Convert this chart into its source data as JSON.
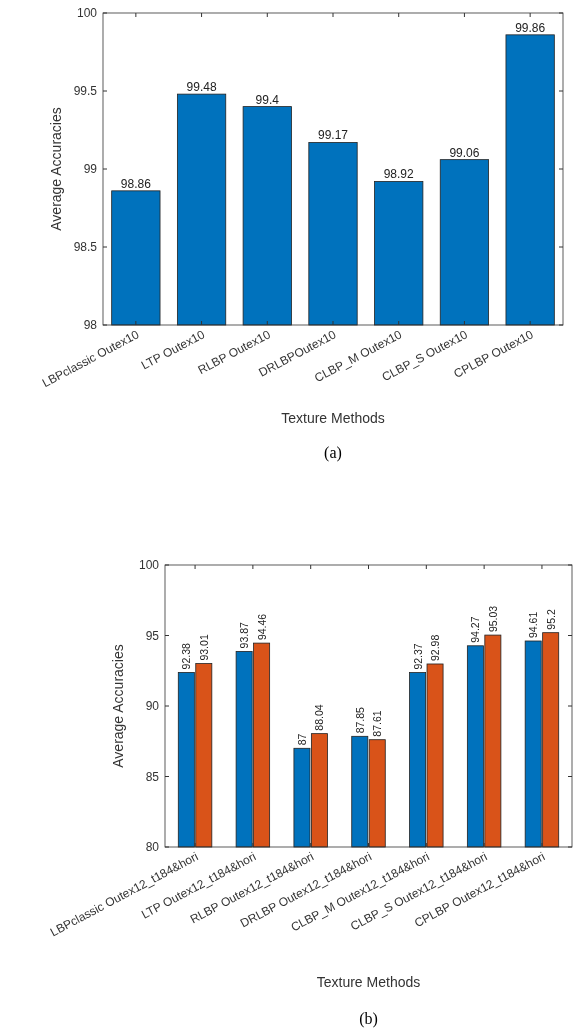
{
  "chart_data": [
    {
      "type": "bar",
      "xlabel": "Texture Methods",
      "ylabel": "Average Accuracies",
      "annotations": [
        "(a)"
      ],
      "categories": [
        "LBPclassic Outex10",
        "LTP Outex10",
        "RLBP Outex10",
        "DRLBPOutex10",
        "CLBP_M Outex10",
        "CLBP_S Outex10",
        "CPLBP Outex10"
      ],
      "values": [
        98.86,
        99.48,
        99.4,
        99.17,
        98.92,
        99.06,
        99.86
      ],
      "color": "#0072bd",
      "ylim": [
        98,
        100
      ],
      "yticks": [
        98,
        98.5,
        99,
        99.5,
        100
      ],
      "data_labels": true
    },
    {
      "type": "bar",
      "xlabel": "Texture Methods",
      "ylabel": "Average Accuracies",
      "annotations": [
        "(b)"
      ],
      "categories": [
        "LBPclassic Outex12_t184&hori",
        "LTP Outex12_t184&hori",
        "RLBP Outex12_t184&hori",
        "DRLBP Outex12_t184&hori",
        "CLBP_M Outex12_t184&hori",
        "CLBP_S Outex12_t184&hori",
        "CPLBP Outex12_t184&hori"
      ],
      "series": [
        {
          "color": "#0072bd",
          "values": [
            92.38,
            93.87,
            87,
            87.85,
            92.37,
            94.27,
            94.61
          ]
        },
        {
          "color": "#d95319",
          "values": [
            93.01,
            94.46,
            88.04,
            87.61,
            92.98,
            95.03,
            95.2
          ]
        }
      ],
      "ylim": [
        80,
        100
      ],
      "yticks": [
        80,
        85,
        90,
        95,
        100
      ],
      "data_labels": true
    }
  ]
}
